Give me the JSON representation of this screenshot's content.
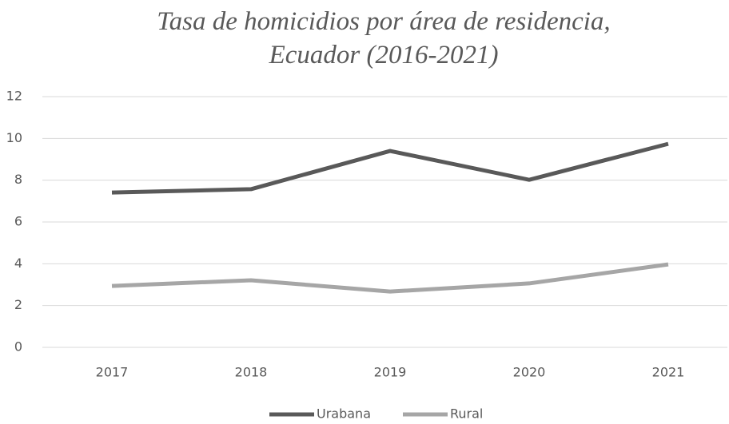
{
  "chart_data": {
    "type": "line",
    "title": "Tasa de homicidios por área de residencia, Ecuador (2016-2021)",
    "categories": [
      "2017",
      "2018",
      "2019",
      "2020",
      "2021"
    ],
    "series": [
      {
        "name": "Urabana",
        "color": "#595959",
        "values": [
          7.41,
          7.57,
          9.4,
          8.02,
          9.74
        ]
      },
      {
        "name": "Rural",
        "color": "#a6a6a6",
        "values": [
          2.94,
          3.21,
          2.67,
          3.06,
          3.97
        ]
      }
    ],
    "ylim": [
      0,
      12
    ],
    "yticks": [
      0,
      2,
      4,
      6,
      8,
      10,
      12
    ],
    "grid": true,
    "legend": "bottom"
  }
}
